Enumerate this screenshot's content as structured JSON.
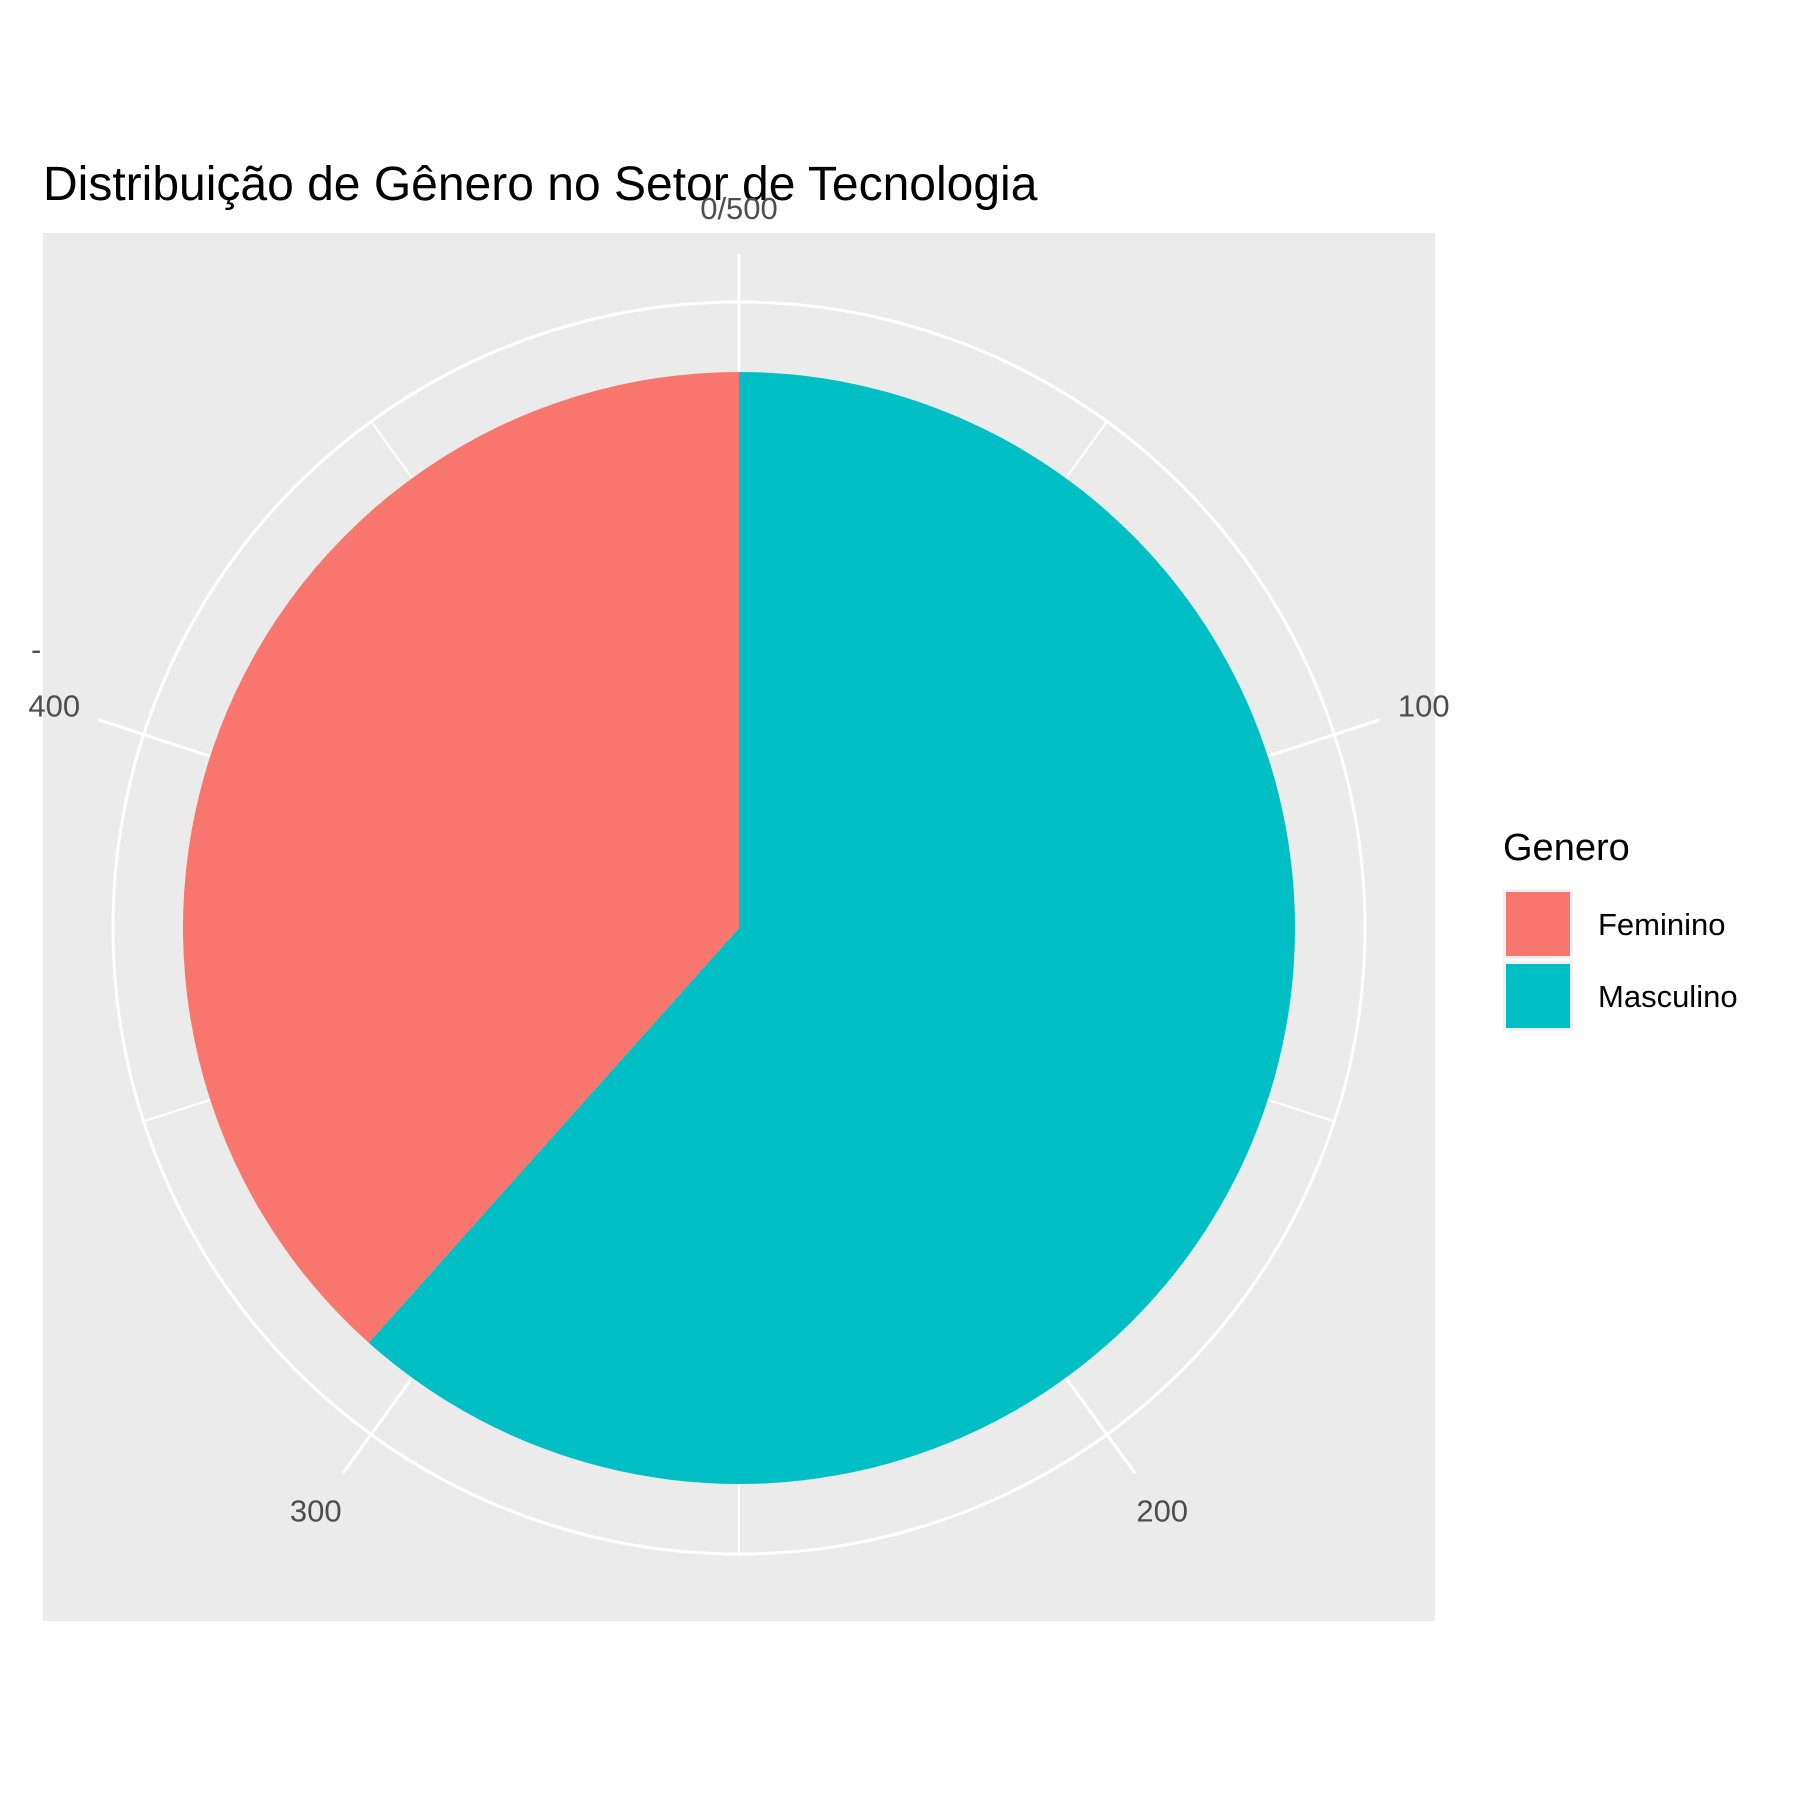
{
  "chart_data": {
    "type": "pie",
    "title": "Distribuição de Gênero no Setor de Tecnologia",
    "total": 500,
    "theta_ticks": [
      {
        "value": 0,
        "label": "0/500"
      },
      {
        "value": 100,
        "label": "100"
      },
      {
        "value": 200,
        "label": "200"
      },
      {
        "value": 300,
        "label": "300"
      },
      {
        "value": 400,
        "label": "400"
      }
    ],
    "slices": [
      {
        "label": "Masculino",
        "value": 308,
        "color": "#00BFC4"
      },
      {
        "label": "Feminino",
        "value": 192,
        "color": "#F8766D"
      }
    ],
    "y_axis_label": "-",
    "legend": {
      "title": "Genero",
      "position": "right",
      "items": [
        {
          "label": "Feminino",
          "color": "#F8766D"
        },
        {
          "label": "Masculino",
          "color": "#00BFC4"
        }
      ]
    },
    "panel_background": "#EBEBEB",
    "grid": true
  }
}
